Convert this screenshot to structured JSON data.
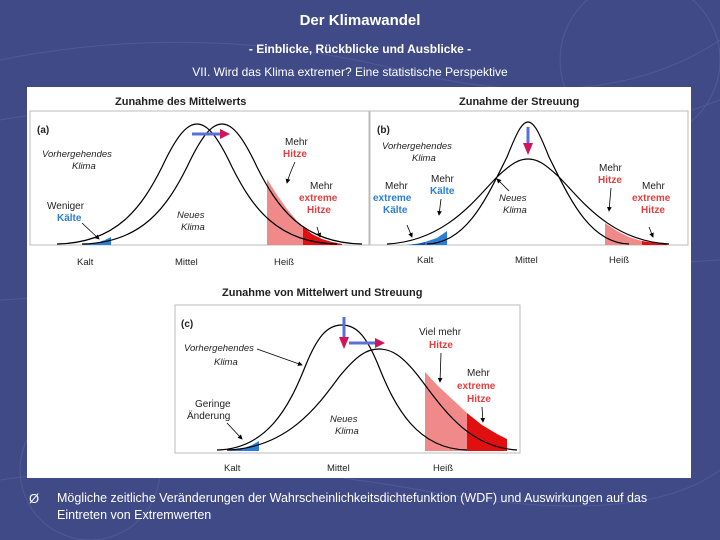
{
  "header": {
    "title": "Der Klimawandel",
    "subtitle": "- Einblicke, Rückblicke und Ausblicke -",
    "subtitle2": "VII. Wird das Klima extremer? Eine statistische Perspektive"
  },
  "figure": {
    "panel_a": {
      "heading": "Zunahme des Mittelwerts",
      "tag": "(a)",
      "prev_climate": [
        "Vorhergehendes",
        "Klima"
      ],
      "less_cold": [
        "Weniger",
        "Kälte"
      ],
      "new_climate": [
        "Neues",
        "Klima"
      ],
      "more_heat": [
        "Mehr",
        "Hitze"
      ],
      "more_extreme_heat": [
        "Mehr",
        "extreme",
        "Hitze"
      ],
      "axis": [
        "Kalt",
        "Mittel",
        "Heiß"
      ]
    },
    "panel_b": {
      "heading": "Zunahme der Streuung",
      "tag": "(b)",
      "prev_climate": [
        "Vorhergehendes",
        "Klima"
      ],
      "more_extreme_cold": [
        "Mehr",
        "extreme",
        "Kälte"
      ],
      "more_cold": [
        "Mehr",
        "Kälte"
      ],
      "new_climate": [
        "Neues",
        "Klima"
      ],
      "more_heat": [
        "Mehr",
        "Hitze"
      ],
      "more_extreme_heat": [
        "Mehr",
        "extreme",
        "Hitze"
      ],
      "axis": [
        "Kalt",
        "Mittel",
        "Heiß"
      ]
    },
    "panel_c": {
      "heading": "Zunahme von Mittelwert und Streuung",
      "tag": "(c)",
      "prev_climate": [
        "Vorhergehendes",
        "Klima"
      ],
      "small_change": [
        "Geringe",
        "Änderung"
      ],
      "new_climate": [
        "Neues",
        "Klima"
      ],
      "much_more_heat": [
        "Viel mehr",
        "Hitze"
      ],
      "more_extreme_heat": [
        "Mehr",
        "extreme",
        "Hitze"
      ],
      "axis": [
        "Kalt",
        "Mittel",
        "Heiß"
      ]
    },
    "colors": {
      "cold": "#2a7fd4",
      "heat": "#f08a8a",
      "extreme_heat": "#e01010",
      "arrow_red": "#d2145a",
      "arrow_blue": "#5b6fd8",
      "label_red": "#e04040",
      "label_blue": "#2a7fd4"
    }
  },
  "caption": {
    "bullet": "Ø",
    "text": "Mögliche zeitliche Veränderungen der Wahrscheinlichkeitsdichtefunktion (WDF) und Auswirkungen auf das Eintreten von Extremwerten"
  }
}
